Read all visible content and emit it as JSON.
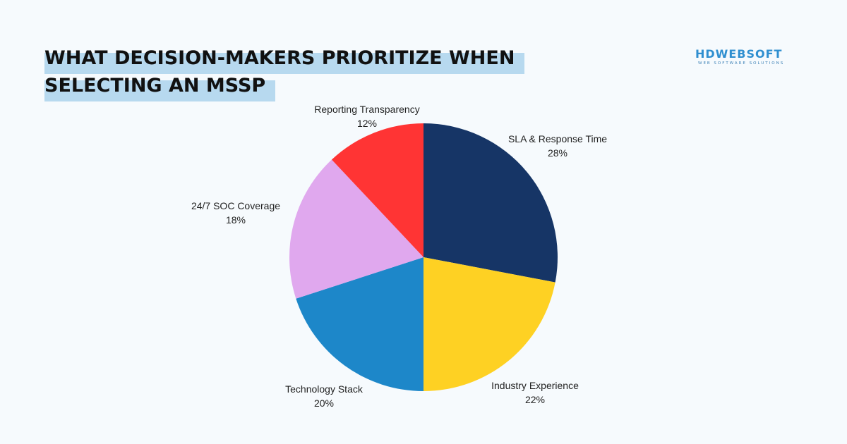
{
  "header": {
    "title_line1": "WHAT DECISION-MAKERS PRIORITIZE WHEN",
    "title_line2": "SELECTING AN MSSP"
  },
  "logo": {
    "name": "HDWEBSOFT",
    "tagline": "WEB SOFTWARE SOLUTIONS",
    "color": "#2f8fd0"
  },
  "chart_data": {
    "type": "pie",
    "title": "WHAT DECISION-MAKERS PRIORITIZE WHEN SELECTING AN MSSP",
    "start_angle_deg": 0,
    "direction": "clockwise",
    "slices": [
      {
        "label": "SLA & Response Time",
        "value": 28,
        "value_label": "28%",
        "color": "#163566"
      },
      {
        "label": "Industry Experience",
        "value": 22,
        "value_label": "22%",
        "color": "#fed123"
      },
      {
        "label": "Technology Stack",
        "value": 20,
        "value_label": "20%",
        "color": "#1d87c9"
      },
      {
        "label": "24/7 SOC Coverage",
        "value": 18,
        "value_label": "18%",
        "color": "#e0a8ee"
      },
      {
        "label": "Reporting Transparency",
        "value": 12,
        "value_label": "12%",
        "color": "#ff3434"
      }
    ]
  }
}
